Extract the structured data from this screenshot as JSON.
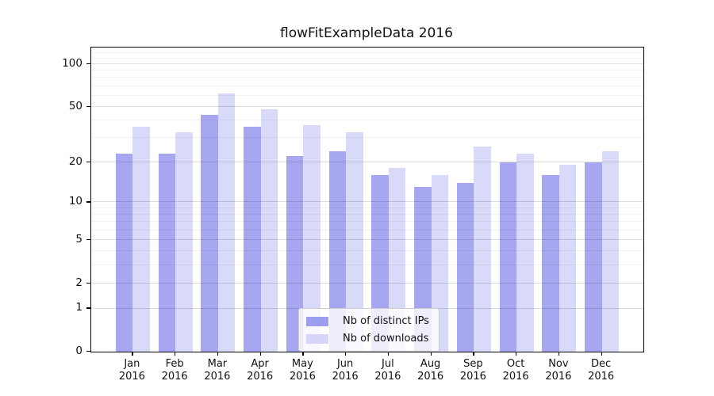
{
  "chart_data": {
    "type": "bar",
    "title": "flowFitExampleData 2016",
    "categories": [
      "Jan",
      "Feb",
      "Mar",
      "Apr",
      "May",
      "Jun",
      "Jul",
      "Aug",
      "Sep",
      "Oct",
      "Nov",
      "Dec"
    ],
    "year_label": "2016",
    "series": [
      {
        "name": "Nb of distinct IPs",
        "color": "#9e9ef0",
        "values": [
          23,
          23,
          44,
          36,
          22,
          24,
          16,
          13,
          14,
          20,
          16,
          20
        ]
      },
      {
        "name": "Nb of downloads",
        "color": "#d6d6f8",
        "values": [
          36,
          33,
          62,
          48,
          37,
          33,
          18,
          16,
          26,
          23,
          19,
          24
        ]
      }
    ],
    "xlabel": "",
    "ylabel": "",
    "yscale": "log1p",
    "ylim": [
      0,
      131
    ],
    "yticks": [
      0,
      1,
      2,
      5,
      10,
      20,
      50,
      100
    ],
    "yticks_minor": [
      3,
      4,
      6,
      7,
      8,
      9,
      30,
      40,
      60,
      70,
      80,
      90,
      110,
      120
    ],
    "grid": "horizontal-major-and-minor",
    "legend_position": "inside-bottom-center"
  }
}
